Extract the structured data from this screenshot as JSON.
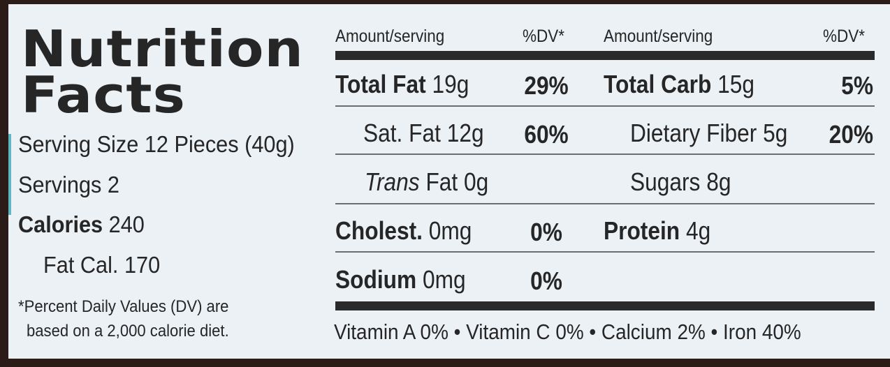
{
  "title": {
    "line1": "Nutrition",
    "line2": "Facts"
  },
  "serving": {
    "serving_size": "Serving Size 12 Pieces (40g)",
    "servings": "Servings 2",
    "calories_label": "Calories",
    "calories_value": "240",
    "fat_cal": "Fat Cal. 170"
  },
  "footnote": {
    "line1": "*Percent Daily Values (DV) are",
    "line2": "based on a 2,000 calorie diet."
  },
  "headers": {
    "amount": "Amount/serving",
    "dv": "%DV*"
  },
  "left_rows": [
    {
      "label": "Total Fat",
      "amount": "19g",
      "dv": "29%"
    },
    {
      "label": "Sat. Fat",
      "amount": "12g",
      "dv": "60%"
    },
    {
      "label": "Trans",
      "amount": "Fat 0g",
      "dv": ""
    },
    {
      "label": "Cholest.",
      "amount": "0mg",
      "dv": "0%"
    },
    {
      "label": "Sodium",
      "amount": "0mg",
      "dv": "0%"
    }
  ],
  "right_rows": [
    {
      "label": "Total Carb",
      "amount": "15g",
      "dv": "5%"
    },
    {
      "label": "Dietary Fiber",
      "amount": "5g",
      "dv": "20%"
    },
    {
      "label": "Sugars",
      "amount": "8g",
      "dv": ""
    },
    {
      "label": "Protein",
      "amount": "4g",
      "dv": ""
    }
  ],
  "vitamins": "Vitamin A 0% • Vitamin C 0% • Calcium 2% • Iron 40%",
  "colors": {
    "label_bg": "#ecf1f6",
    "frame": "#2b1c18",
    "text": "#262626"
  }
}
